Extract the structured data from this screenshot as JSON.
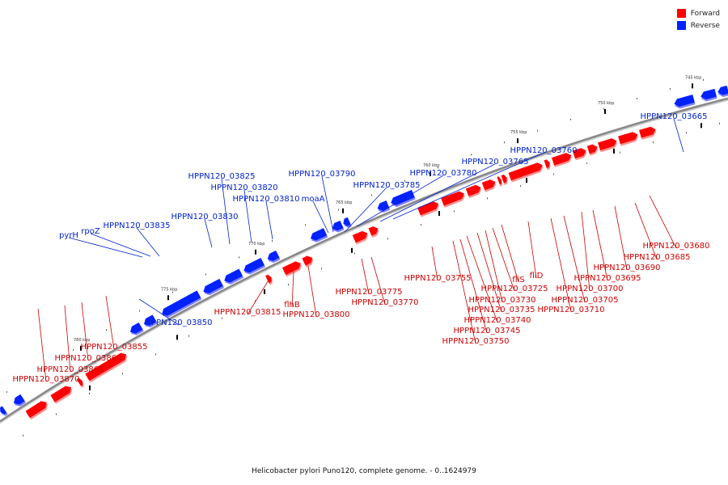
{
  "legend": {
    "forward_label": "Forward",
    "reverse_label": "Reverse",
    "forward_color": "#ff0000",
    "reverse_color": "#0022ff"
  },
  "caption": "Helicobacter pylori Puno120, complete genome. - 0..1624979",
  "backbone_color": "#888888",
  "ticks": [
    "780 kbp",
    "775 kbp",
    "770 kbp",
    "765 kbp",
    "760 kbp",
    "755 kbp",
    "750 kbp",
    "745 kbp"
  ],
  "reverse_genes": [
    "HPPN120_03665",
    "HPPN120_03760",
    "HPPN120_03765",
    "HPPN120_03780",
    "HPPN120_03785",
    "HPPN120_03790",
    "moaA",
    "HPPN120_03810",
    "HPPN120_03820",
    "HPPN120_03825",
    "HPPN120_03830",
    "HPPN120_03835",
    "rpoZ",
    "pyrH",
    "HPPN120_03850"
  ],
  "forward_genes": [
    "HPPN120_03680",
    "HPPN120_03685",
    "HPPN120_03690",
    "HPPN120_03695",
    "HPPN120_03700",
    "HPPN120_03705",
    "HPPN120_03710",
    "fliD",
    "fliS",
    "HPPN120_03725",
    "HPPN120_03730",
    "HPPN120_03735",
    "HPPN120_03740",
    "HPPN120_03745",
    "HPPN120_03750",
    "HPPN120_03755",
    "HPPN120_03770",
    "HPPN120_03775",
    "HPPN120_03800",
    "flhB",
    "HPPN120_03815",
    "HPPN120_03855",
    "HPPN120_03860",
    "HPPN120_03865",
    "HPPN120_03870"
  ]
}
